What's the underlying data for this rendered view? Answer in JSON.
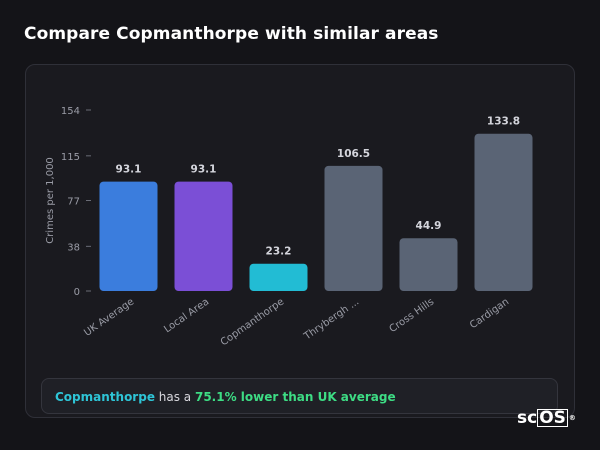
{
  "header": {
    "title": "Compare Copmanthorpe with similar areas"
  },
  "chart_data": {
    "type": "bar",
    "ylabel": "Crimes per 1,000",
    "y_ticks": [
      0,
      38,
      77,
      115,
      154
    ],
    "ylim": [
      0,
      154
    ],
    "grid": false,
    "categories": [
      "UK Average",
      "Local Area",
      "Copmanthorpe",
      "Thrybergh ...",
      "Cross Hills",
      "Cardigan"
    ],
    "values": [
      93.1,
      93.1,
      23.2,
      106.5,
      44.9,
      133.8
    ],
    "value_labels": [
      "93.1",
      "93.1",
      "23.2",
      "106.5",
      "44.9",
      "133.8"
    ],
    "colors": [
      "#3b7ddd",
      "#7b4fd6",
      "#22bcd4",
      "#5a6475",
      "#5a6475",
      "#5a6475"
    ]
  },
  "summary": {
    "area": "Copmanthorpe",
    "middle": " has a ",
    "comparison": "75.1% lower than UK average"
  },
  "logo": {
    "prefix": "sc",
    "boxed": "OS",
    "mark": "®"
  }
}
